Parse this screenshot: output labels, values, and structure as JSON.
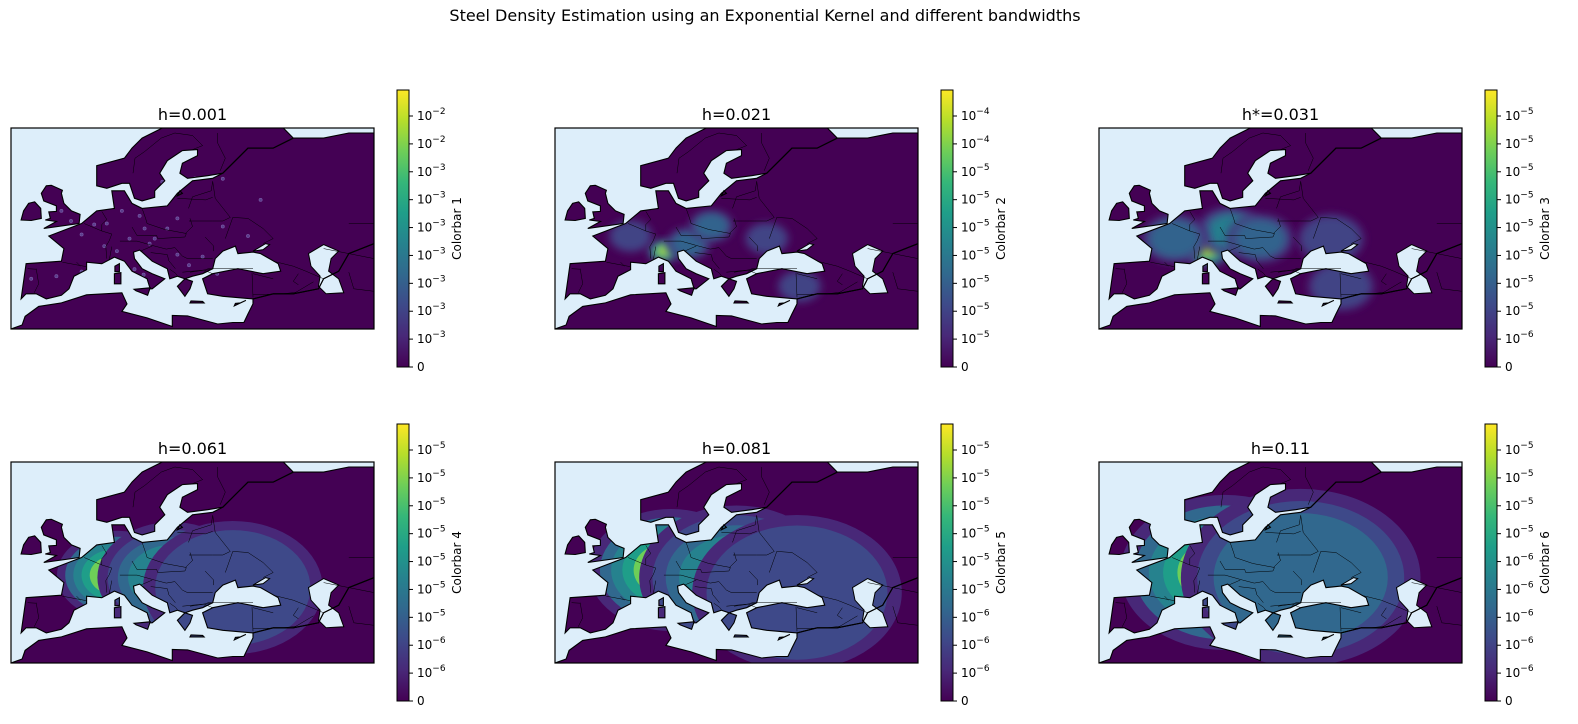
{
  "figure": {
    "title": "Steel Density Estimation using an Exponential Kernel and different bandwidths"
  },
  "colors": {
    "ocean": "#ddeefa",
    "land": "#440154",
    "coast": "#000000",
    "viridis": [
      "#440154",
      "#482878",
      "#3e4989",
      "#31688e",
      "#26828e",
      "#1f9e89",
      "#35b779",
      "#6ece58",
      "#b5de2b",
      "#fde725"
    ]
  },
  "chart_data": [
    {
      "type": "heatmap",
      "title": "h=0.001",
      "colorbar_label": "Colorbar 1",
      "colorbar_ticks": [
        "0",
        "10−3",
        "10−3",
        "10−3",
        "10−3",
        "10−3",
        "10−3",
        "10−3",
        "10−2",
        "10−2"
      ],
      "colorbar_exponents": [
        "",
        "-3",
        "-3",
        "-3",
        "-3",
        "-3",
        "-3",
        "-3",
        "-2",
        "-2"
      ],
      "hotspots": [],
      "smoothness": "spiky"
    },
    {
      "type": "heatmap",
      "title": "h=0.021",
      "colorbar_label": "Colorbar 2",
      "colorbar_ticks": [
        "0",
        "10−5",
        "10−5",
        "10−5",
        "10−5",
        "10−5",
        "10−5",
        "10−5",
        "10−4",
        "10−4"
      ],
      "colorbar_exponents": [
        "",
        "-5",
        "-5",
        "-5",
        "-5",
        "-5",
        "-5",
        "-5",
        "-4",
        "-4"
      ],
      "hotspots": [
        {
          "lon": 9.5,
          "lat": 45.5,
          "level": 1.0,
          "spread": 2.2
        },
        {
          "lon": 14.5,
          "lat": 47.0,
          "level": 0.5,
          "spread": 3.0
        },
        {
          "lon": 19.0,
          "lat": 50.5,
          "level": 0.45,
          "spread": 3.0
        },
        {
          "lon": 3.0,
          "lat": 48.5,
          "level": 0.35,
          "spread": 3.0
        },
        {
          "lon": 30.0,
          "lat": 48.0,
          "level": 0.3,
          "spread": 3.0
        },
        {
          "lon": 36.5,
          "lat": 38.5,
          "level": 0.35,
          "spread": 3.0
        }
      ],
      "smoothness": "soft"
    },
    {
      "type": "heatmap",
      "title": "h*=0.031",
      "colorbar_label": "Colorbar 3",
      "colorbar_ticks": [
        "0",
        "10−6",
        "10−5",
        "10−5",
        "10−5",
        "10−5",
        "10−5",
        "10−5",
        "10−5",
        "10−5"
      ],
      "colorbar_exponents": [
        "",
        "-6",
        "-5",
        "-5",
        "-5",
        "-5",
        "-5",
        "-5",
        "-5",
        "-5"
      ],
      "hotspots": [
        {
          "lon": 9.5,
          "lat": 45.8,
          "level": 1.0,
          "spread": 3.2
        },
        {
          "lon": 14.0,
          "lat": 49.5,
          "level": 0.6,
          "spread": 4.5
        },
        {
          "lon": 3.0,
          "lat": 48.0,
          "level": 0.45,
          "spread": 4.5
        },
        {
          "lon": 20.0,
          "lat": 48.0,
          "level": 0.45,
          "spread": 4.5
        },
        {
          "lon": 34.0,
          "lat": 48.0,
          "level": 0.35,
          "spread": 4.5
        },
        {
          "lon": 36.0,
          "lat": 38.5,
          "level": 0.3,
          "spread": 4.5
        }
      ],
      "smoothness": "soft"
    },
    {
      "type": "heatmap",
      "title": "h=0.061",
      "colorbar_label": "Colorbar 4",
      "colorbar_ticks": [
        "0",
        "10−6",
        "10−6",
        "10−5",
        "10−5",
        "10−5",
        "10−5",
        "10−5",
        "10−5",
        "10−5"
      ],
      "colorbar_exponents": [
        "",
        "-6",
        "-6",
        "-5",
        "-5",
        "-5",
        "-5",
        "-5",
        "-5",
        "-5"
      ],
      "hotspots": [
        {
          "lon": 9.0,
          "lat": 47.5,
          "level": 1.0,
          "spread": 8.0
        },
        {
          "lon": 20.0,
          "lat": 47.0,
          "level": 0.6,
          "spread": 10.0
        },
        {
          "lon": 32.0,
          "lat": 45.0,
          "level": 0.35,
          "spread": 12.0
        }
      ],
      "smoothness": "banded"
    },
    {
      "type": "heatmap",
      "title": "h=0.081",
      "colorbar_label": "Colorbar 5",
      "colorbar_ticks": [
        "0",
        "10−6",
        "10−6",
        "10−6",
        "10−5",
        "10−5",
        "10−5",
        "10−5",
        "10−5",
        "10−5"
      ],
      "colorbar_exponents": [
        "",
        "-6",
        "-6",
        "-6",
        "-5",
        "-5",
        "-5",
        "-5",
        "-5",
        "-5"
      ],
      "hotspots": [
        {
          "lon": 11.0,
          "lat": 48.5,
          "level": 1.0,
          "spread": 11.0
        },
        {
          "lon": 24.0,
          "lat": 47.0,
          "level": 0.55,
          "spread": 13.0
        },
        {
          "lon": 36.0,
          "lat": 44.0,
          "level": 0.3,
          "spread": 14.0
        }
      ],
      "smoothness": "banded"
    },
    {
      "type": "heatmap",
      "title": "h=0.11",
      "colorbar_label": "Colorbar 6",
      "colorbar_ticks": [
        "0",
        "10−6",
        "10−6",
        "10−6",
        "10−6",
        "10−6",
        "10−5",
        "10−5",
        "10−5",
        "10−5"
      ],
      "colorbar_exponents": [
        "",
        "-6",
        "-6",
        "-6",
        "-6",
        "-6",
        "-5",
        "-5",
        "-5",
        "-5"
      ],
      "hotspots": [
        {
          "lon": 13.0,
          "lat": 48.0,
          "level": 1.0,
          "spread": 14.0
        },
        {
          "lon": 28.0,
          "lat": 47.0,
          "level": 0.5,
          "spread": 16.0
        }
      ],
      "smoothness": "banded"
    }
  ]
}
